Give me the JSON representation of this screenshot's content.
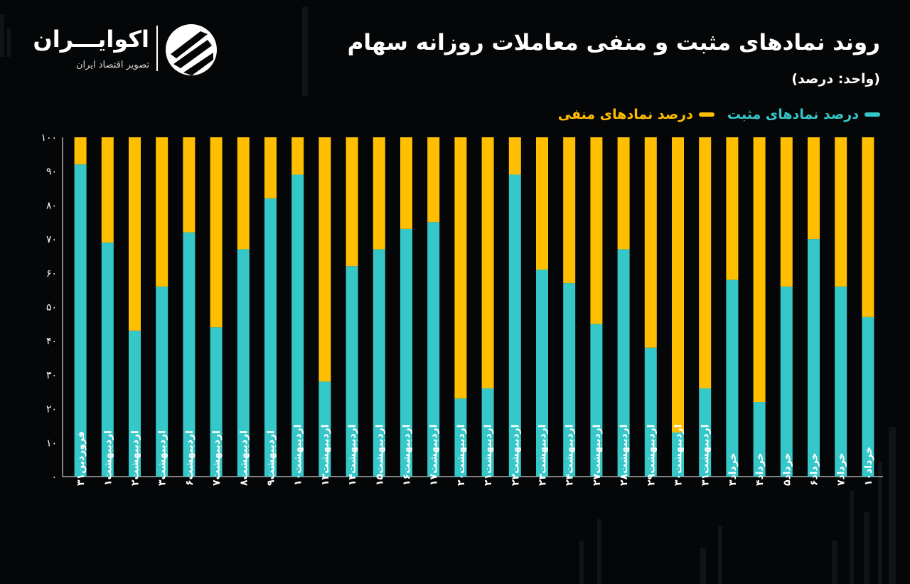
{
  "header": {
    "title": "روند نمادهای مثبت و منفی معاملات روزانه سهام",
    "unit": "(واحد: درصد)"
  },
  "logo": {
    "name": "اکوایـــران",
    "subtitle": "تصویر اقتصاد ایران"
  },
  "legend": {
    "positive": "درصد نمادهای مثبت",
    "negative": "درصد نمادهای منفی"
  },
  "colors": {
    "positive": "#36c7c9",
    "negative": "#ffbf00",
    "background": "#050607"
  },
  "chart_data": {
    "type": "bar",
    "stacked": true,
    "title": "روند نمادهای مثبت و منفی معاملات روزانه سهام",
    "ylim": [
      0,
      100
    ],
    "yticks": [
      "۰",
      "۱۰",
      "۲۰",
      "۳۰",
      "۴۰",
      "۵۰",
      "۶۰",
      "۷۰",
      "۸۰",
      "۹۰",
      "۱۰۰"
    ],
    "grid": false,
    "legend_position": "top-right",
    "categories": [
      "فروردین۳۱",
      "اردیبهشت۱",
      "اردیبهشت۲",
      "اردیبهشت۳",
      "اردیبهشت۶",
      "اردیبهشت۷",
      "اردیبهشت۸",
      "اردیبهشت۹",
      "اردیبهشت۱۰",
      "اردیبهشت۱۳",
      "اردیبهشت۱۴",
      "اردیبهشت۱۵",
      "اردیبهشت۱۶",
      "اردیبهشت۱۷",
      "اردیبهشت۲۰",
      "اردیبهشت۲۱",
      "اردیبهشت۲۲",
      "اردیبهشت۲۳",
      "اردیبهشت۲۴",
      "اردیبهشت۲۷",
      "اردیبهشت۲۸",
      "اردیبهشت۲۹",
      "اردیبهشت۳۰",
      "اردیبهشت۳۱",
      "خرداد۳",
      "خرداد۴",
      "خرداد۵",
      "خرداد۶",
      "خرداد۷",
      "خرداد۱۰"
    ],
    "series": [
      {
        "name": "درصد نمادهای مثبت",
        "values": [
          92,
          69,
          43,
          56,
          72,
          44,
          67,
          82,
          89,
          28,
          62,
          67,
          73,
          75,
          23,
          26,
          89,
          61,
          57,
          45,
          67,
          38,
          13,
          26,
          58,
          22,
          56,
          70,
          56,
          47
        ]
      },
      {
        "name": "درصد نمادهای منفی",
        "values": [
          8,
          31,
          57,
          44,
          28,
          56,
          33,
          18,
          11,
          72,
          38,
          33,
          27,
          25,
          77,
          74,
          11,
          39,
          43,
          55,
          33,
          62,
          87,
          74,
          42,
          78,
          44,
          30,
          44,
          53
        ]
      }
    ]
  }
}
